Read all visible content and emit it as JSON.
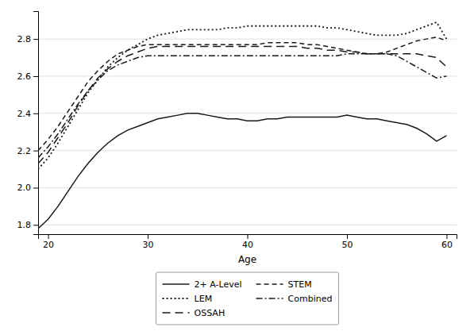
{
  "chart_data": {
    "type": "line",
    "xlabel": "Age",
    "xlim": [
      19,
      61
    ],
    "ylim": [
      1.75,
      2.95
    ],
    "xticks": [
      20,
      30,
      40,
      50,
      60
    ],
    "yticks": [
      1.8,
      {
        "value": 2.0,
        "label": "2.0"
      },
      2.2,
      2.4,
      2.6,
      2.8
    ],
    "grid": true,
    "legend": "bottom",
    "x": [
      19,
      20,
      21,
      22,
      23,
      24,
      25,
      26,
      27,
      28,
      29,
      30,
      31,
      32,
      33,
      34,
      35,
      36,
      37,
      38,
      39,
      40,
      41,
      42,
      43,
      44,
      45,
      46,
      47,
      48,
      49,
      50,
      51,
      52,
      53,
      54,
      55,
      56,
      57,
      58,
      59,
      60
    ],
    "series": [
      {
        "name": "2+ A-Level",
        "color": "#1a1a1a",
        "line_style": "solid",
        "values": [
          1.78,
          1.83,
          1.9,
          1.98,
          2.06,
          2.13,
          2.19,
          2.24,
          2.28,
          2.31,
          2.33,
          2.35,
          2.37,
          2.38,
          2.39,
          2.4,
          2.4,
          2.39,
          2.38,
          2.37,
          2.37,
          2.36,
          2.36,
          2.37,
          2.37,
          2.38,
          2.38,
          2.38,
          2.38,
          2.38,
          2.38,
          2.39,
          2.38,
          2.37,
          2.37,
          2.36,
          2.35,
          2.34,
          2.32,
          2.29,
          2.25,
          2.28
        ]
      },
      {
        "name": "LEM",
        "color": "#1a1a1a",
        "line_style": "dotted",
        "values": [
          2.1,
          2.16,
          2.24,
          2.33,
          2.42,
          2.51,
          2.58,
          2.65,
          2.7,
          2.74,
          2.77,
          2.8,
          2.82,
          2.83,
          2.84,
          2.85,
          2.85,
          2.85,
          2.85,
          2.86,
          2.86,
          2.87,
          2.87,
          2.87,
          2.87,
          2.87,
          2.87,
          2.87,
          2.87,
          2.86,
          2.86,
          2.85,
          2.84,
          2.83,
          2.82,
          2.82,
          2.82,
          2.83,
          2.85,
          2.87,
          2.89,
          2.8
        ]
      },
      {
        "name": "OSSAH",
        "color": "#1a1a1a",
        "line_style": "longdash",
        "values": [
          2.13,
          2.19,
          2.27,
          2.35,
          2.44,
          2.52,
          2.59,
          2.64,
          2.68,
          2.71,
          2.73,
          2.75,
          2.76,
          2.76,
          2.76,
          2.76,
          2.76,
          2.76,
          2.76,
          2.76,
          2.76,
          2.76,
          2.76,
          2.76,
          2.76,
          2.76,
          2.76,
          2.75,
          2.75,
          2.74,
          2.74,
          2.73,
          2.73,
          2.72,
          2.72,
          2.72,
          2.72,
          2.72,
          2.72,
          2.71,
          2.7,
          2.65
        ]
      },
      {
        "name": "STEM",
        "color": "#1a1a1a",
        "line_style": "dashed",
        "values": [
          2.2,
          2.26,
          2.33,
          2.41,
          2.49,
          2.57,
          2.63,
          2.68,
          2.72,
          2.74,
          2.76,
          2.77,
          2.77,
          2.77,
          2.77,
          2.77,
          2.77,
          2.77,
          2.77,
          2.77,
          2.77,
          2.77,
          2.77,
          2.78,
          2.78,
          2.78,
          2.78,
          2.77,
          2.77,
          2.76,
          2.75,
          2.74,
          2.73,
          2.72,
          2.72,
          2.73,
          2.75,
          2.77,
          2.79,
          2.8,
          2.81,
          2.79
        ]
      },
      {
        "name": "Combined",
        "color": "#1a1a1a",
        "line_style": "dashdot",
        "values": [
          2.16,
          2.22,
          2.29,
          2.37,
          2.45,
          2.52,
          2.58,
          2.63,
          2.66,
          2.68,
          2.7,
          2.71,
          2.71,
          2.71,
          2.71,
          2.71,
          2.71,
          2.71,
          2.71,
          2.71,
          2.71,
          2.71,
          2.71,
          2.71,
          2.71,
          2.71,
          2.71,
          2.71,
          2.71,
          2.71,
          2.71,
          2.72,
          2.72,
          2.72,
          2.72,
          2.72,
          2.71,
          2.68,
          2.65,
          2.62,
          2.59,
          2.6
        ]
      }
    ]
  }
}
